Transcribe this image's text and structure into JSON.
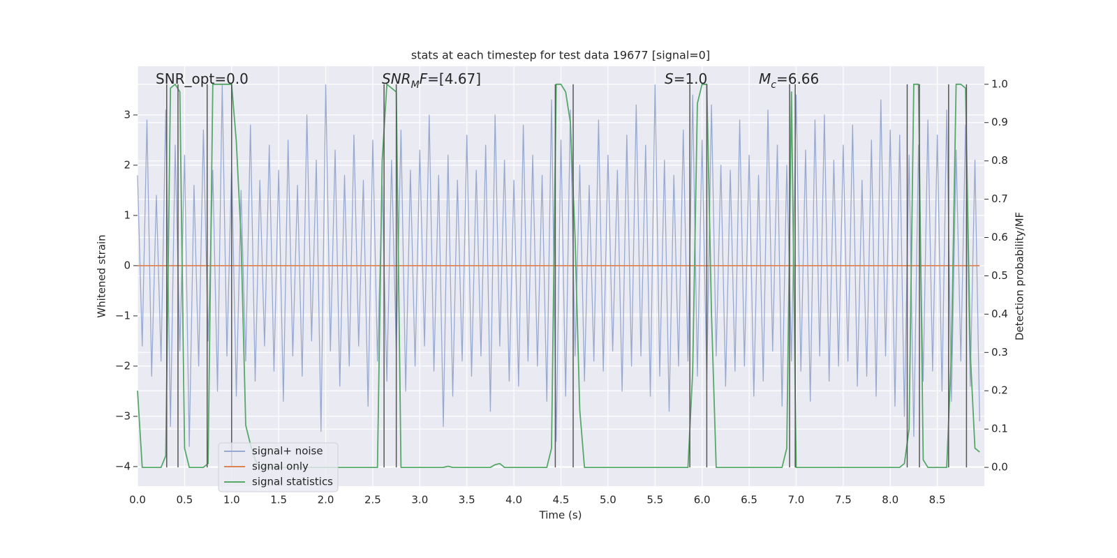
{
  "chart_data": {
    "type": "line",
    "title": "stats at each timestep for test data 19677 [signal=0]",
    "xlabel": "Time (s)",
    "ylabel": "Whitened strain",
    "y2label": "Detection probability/MF",
    "xlim": [
      0,
      9.0
    ],
    "ylim": [
      -4.39,
      3.97
    ],
    "y2lim": [
      -0.049,
      1.047
    ],
    "xticks": [
      {
        "value": 0,
        "label": "0.0"
      },
      {
        "value": 0.5,
        "label": "0.5"
      },
      {
        "value": 1,
        "label": "1.0"
      },
      {
        "value": 1.5,
        "label": "1.5"
      },
      {
        "value": 2,
        "label": "2.0"
      },
      {
        "value": 2.5,
        "label": "2.5"
      },
      {
        "value": 3,
        "label": "3.0"
      },
      {
        "value": 3.5,
        "label": "3.5"
      },
      {
        "value": 4,
        "label": "4.0"
      },
      {
        "value": 4.5,
        "label": "4.5"
      },
      {
        "value": 5,
        "label": "5.0"
      },
      {
        "value": 5.5,
        "label": "5.5"
      },
      {
        "value": 6,
        "label": "6.0"
      },
      {
        "value": 6.5,
        "label": "6.5"
      },
      {
        "value": 7,
        "label": "7.0"
      },
      {
        "value": 7.5,
        "label": "7.5"
      },
      {
        "value": 8,
        "label": "8.0"
      },
      {
        "value": 8.5,
        "label": "8.5"
      }
    ],
    "yticks": [
      {
        "value": -4,
        "label": "−4"
      },
      {
        "value": -3,
        "label": "−3"
      },
      {
        "value": -2,
        "label": "−2"
      },
      {
        "value": -1,
        "label": "−1"
      },
      0,
      1,
      2,
      3
    ],
    "y2ticks": [
      {
        "value": 0,
        "label": "0.0"
      },
      {
        "value": 0.1,
        "label": "0.1"
      },
      {
        "value": 0.2,
        "label": "0.2"
      },
      {
        "value": 0.3,
        "label": "0.3"
      },
      {
        "value": 0.4,
        "label": "0.4"
      },
      {
        "value": 0.5,
        "label": "0.5"
      },
      {
        "value": 0.6,
        "label": "0.6"
      },
      {
        "value": 0.7,
        "label": "0.7"
      },
      {
        "value": 0.8,
        "label": "0.8"
      },
      {
        "value": 0.9,
        "label": "0.9"
      },
      {
        "value": 1,
        "label": "1.0"
      }
    ],
    "grid": true,
    "legend": "lower left",
    "x": [
      0,
      0.05,
      0.1,
      0.15,
      0.2,
      0.25,
      0.3,
      0.35,
      0.4,
      0.45,
      0.5,
      0.55,
      0.6,
      0.65,
      0.7,
      0.75,
      0.8,
      0.85,
      0.9,
      0.95,
      1.0,
      1.05,
      1.1,
      1.15,
      1.2,
      1.25,
      1.3,
      1.35,
      1.4,
      1.45,
      1.5,
      1.55,
      1.6,
      1.65,
      1.7,
      1.75,
      1.8,
      1.85,
      1.9,
      1.95,
      2.0,
      2.05,
      2.1,
      2.15,
      2.2,
      2.25,
      2.3,
      2.35,
      2.4,
      2.45,
      2.5,
      2.55,
      2.6,
      2.65,
      2.7,
      2.75,
      2.8,
      2.85,
      2.9,
      2.95,
      3.0,
      3.05,
      3.1,
      3.15,
      3.2,
      3.25,
      3.3,
      3.35,
      3.4,
      3.45,
      3.5,
      3.55,
      3.6,
      3.65,
      3.7,
      3.75,
      3.8,
      3.85,
      3.9,
      3.95,
      4.0,
      4.05,
      4.1,
      4.15,
      4.2,
      4.25,
      4.3,
      4.35,
      4.4,
      4.45,
      4.5,
      4.55,
      4.6,
      4.65,
      4.7,
      4.75,
      4.8,
      4.85,
      4.9,
      4.95,
      5.0,
      5.05,
      5.1,
      5.15,
      5.2,
      5.25,
      5.3,
      5.35,
      5.4,
      5.45,
      5.5,
      5.55,
      5.6,
      5.65,
      5.7,
      5.75,
      5.8,
      5.85,
      5.9,
      5.95,
      6.0,
      6.05,
      6.1,
      6.15,
      6.2,
      6.25,
      6.3,
      6.35,
      6.4,
      6.45,
      6.5,
      6.55,
      6.6,
      6.65,
      6.7,
      6.75,
      6.8,
      6.85,
      6.9,
      6.95,
      7.0,
      7.05,
      7.1,
      7.15,
      7.2,
      7.25,
      7.3,
      7.35,
      7.4,
      7.45,
      7.5,
      7.55,
      7.6,
      7.65,
      7.7,
      7.75,
      7.8,
      7.85,
      7.9,
      7.95,
      8.0,
      8.05,
      8.1,
      8.15,
      8.2,
      8.25,
      8.3,
      8.35,
      8.4,
      8.45,
      8.5,
      8.55,
      8.6,
      8.65,
      8.7,
      8.75,
      8.8,
      8.85,
      8.9,
      8.95
    ],
    "series": [
      {
        "name": "signal+ noise",
        "color": "#98a9d0",
        "values": [
          1.8,
          -1.6,
          2.9,
          -2.2,
          1.4,
          -1.9,
          3.1,
          -3.2,
          2.4,
          -1.7,
          2.2,
          -3.6,
          1.6,
          -2.0,
          2.7,
          -1.5,
          1.9,
          -2.5,
          3.6,
          -1.8,
          2.0,
          -2.6,
          1.5,
          -1.9,
          2.8,
          -2.3,
          1.7,
          -1.6,
          2.4,
          -2.1,
          1.9,
          -2.7,
          2.5,
          -1.8,
          1.6,
          -2.2,
          3.0,
          -1.5,
          2.1,
          -3.3,
          3.6,
          -1.7,
          2.3,
          -2.4,
          1.8,
          -2.0,
          2.6,
          -1.6,
          1.7,
          -2.8,
          2.5,
          -1.9,
          1.6,
          -2.3,
          2.1,
          -1.7,
          2.7,
          -2.5,
          1.9,
          -2.0,
          2.3,
          -1.6,
          3.0,
          -2.1,
          1.8,
          -3.2,
          2.2,
          -2.6,
          1.7,
          -1.9,
          2.6,
          -2.2,
          1.9,
          -1.8,
          2.4,
          -2.9,
          3.0,
          -1.6,
          2.1,
          -2.3,
          1.7,
          -2.4,
          2.8,
          -1.9,
          2.2,
          -2.0,
          1.8,
          -2.7,
          3.3,
          -3.5,
          2.5,
          -2.6,
          3.1,
          -1.8,
          2.0,
          -2.3,
          1.6,
          -1.9,
          2.9,
          -2.1,
          2.2,
          -1.7,
          1.9,
          -2.5,
          2.6,
          -2.0,
          3.2,
          -1.8,
          2.4,
          -2.6,
          3.6,
          -2.2,
          2.1,
          -2.9,
          1.8,
          -2.0,
          2.7,
          -1.9,
          3.4,
          -2.2,
          2.5,
          -2.3,
          3.2,
          -1.8,
          2.0,
          -2.4,
          1.9,
          -2.1,
          2.9,
          -2.0,
          2.2,
          -2.6,
          1.8,
          -2.3,
          3.1,
          -1.7,
          2.4,
          -2.8,
          2.0,
          -1.9,
          3.4,
          -2.1,
          2.3,
          -2.7,
          2.9,
          -1.8,
          3.0,
          -2.3,
          2.1,
          -2.0,
          2.4,
          -1.9,
          2.8,
          -2.4,
          1.7,
          -2.2,
          2.5,
          -2.6,
          3.3,
          -1.8,
          2.7,
          -2.8,
          2.6,
          -3.0,
          2.2,
          -3.4,
          2.4,
          -2.3,
          2.9,
          -2.1,
          2.6,
          -2.5,
          3.1,
          -2.7,
          2.3,
          -1.9,
          2.8,
          -2.4,
          2.1,
          -3.1
        ]
      },
      {
        "name": "signal only",
        "color": "#dd8452",
        "values": [
          0,
          0,
          0,
          0,
          0,
          0,
          0,
          0,
          0,
          0,
          0,
          0,
          0,
          0,
          0,
          0,
          0,
          0,
          0,
          0,
          0,
          0,
          0,
          0,
          0,
          0,
          0,
          0,
          0,
          0,
          0,
          0,
          0,
          0,
          0,
          0,
          0,
          0,
          0,
          0,
          0,
          0,
          0,
          0,
          0,
          0,
          0,
          0,
          0,
          0,
          0,
          0,
          0,
          0,
          0,
          0,
          0,
          0,
          0,
          0,
          0,
          0,
          0,
          0,
          0,
          0,
          0,
          0,
          0,
          0,
          0,
          0,
          0,
          0,
          0,
          0,
          0,
          0,
          0,
          0,
          0,
          0,
          0,
          0,
          0,
          0,
          0,
          0,
          0,
          0,
          0,
          0,
          0,
          0,
          0,
          0,
          0,
          0,
          0,
          0,
          0,
          0,
          0,
          0,
          0,
          0,
          0,
          0,
          0,
          0,
          0,
          0,
          0,
          0,
          0,
          0,
          0,
          0,
          0,
          0,
          0,
          0,
          0,
          0,
          0,
          0,
          0,
          0,
          0,
          0,
          0,
          0,
          0,
          0,
          0,
          0,
          0,
          0,
          0,
          0,
          0,
          0,
          0,
          0,
          0,
          0,
          0,
          0,
          0,
          0,
          0,
          0,
          0,
          0,
          0,
          0,
          0,
          0,
          0,
          0,
          0,
          0,
          0,
          0,
          0,
          0,
          0,
          0,
          0,
          0,
          0,
          0,
          0,
          0,
          0,
          0,
          0,
          0,
          0,
          0
        ]
      },
      {
        "name": "signal statistics",
        "color": "#55a868",
        "axis": "y2",
        "values": [
          0.2,
          0,
          0,
          0,
          0,
          0,
          0.03,
          0.99,
          1.0,
          0.98,
          0.05,
          0,
          0,
          0,
          0,
          0.01,
          1.0,
          1.0,
          1.0,
          1.0,
          1.0,
          0.85,
          0.6,
          0.11,
          0.06,
          0.02,
          0,
          0,
          0,
          0,
          0,
          0,
          0,
          0,
          0,
          0,
          0,
          0,
          0,
          0,
          0,
          0,
          0,
          0,
          0,
          0,
          0,
          0,
          0,
          0,
          0,
          0,
          0.8,
          1.0,
          0.99,
          0.98,
          0,
          0,
          0,
          0,
          0,
          0,
          0,
          0,
          0,
          0,
          0.003,
          0,
          0,
          0,
          0,
          0,
          0,
          0,
          0,
          0,
          0.007,
          0.01,
          0,
          0,
          0,
          0,
          0,
          0,
          0,
          0,
          0,
          0,
          0.05,
          1.0,
          1.0,
          0.98,
          0.9,
          0.6,
          0.15,
          0,
          0,
          0,
          0,
          0,
          0,
          0,
          0,
          0,
          0,
          0,
          0,
          0,
          0,
          0,
          0,
          0,
          0,
          0,
          0,
          0,
          0,
          0,
          0.25,
          0.95,
          1.0,
          1.0,
          0.4,
          0,
          0,
          0,
          0,
          0,
          0,
          0,
          0,
          0,
          0,
          0,
          0,
          0,
          0,
          0,
          0.05,
          0.98,
          0,
          0,
          0,
          0,
          0,
          0,
          0,
          0,
          0,
          0,
          0,
          0,
          0,
          0,
          0,
          0,
          0,
          0,
          0,
          0,
          0,
          0,
          0,
          0.01,
          0.1,
          1.0,
          1.0,
          0.02,
          0,
          0,
          0,
          0,
          0,
          0.3,
          1.0,
          1.0,
          0.99,
          0.3,
          0.05,
          0.04
        ]
      }
    ],
    "vlines": {
      "color": "#555555",
      "ymin": 0,
      "ymax": 1,
      "x": [
        0.31,
        0.43,
        0.74,
        1.0,
        2.62,
        2.75,
        4.44,
        4.63,
        5.87,
        6.05,
        6.93,
        6.99,
        8.18,
        8.31,
        8.62,
        8.81
      ]
    },
    "annotations": [
      [
        {
          "text": "SNR_opt=0.0"
        }
      ],
      [
        {
          "text": "SNR",
          "style": "italic"
        },
        {
          "text": "M",
          "style": "italic-sub"
        },
        {
          "text": "F",
          "style": "italic"
        },
        {
          "text": "=[4.67]"
        }
      ],
      [
        {
          "text": "S",
          "style": "italic"
        },
        {
          "text": "=1.0"
        }
      ],
      [
        {
          "text": "M",
          "style": "italic"
        },
        {
          "text": "c",
          "style": "italic-sub"
        },
        {
          "text": "=6.66"
        }
      ]
    ]
  }
}
